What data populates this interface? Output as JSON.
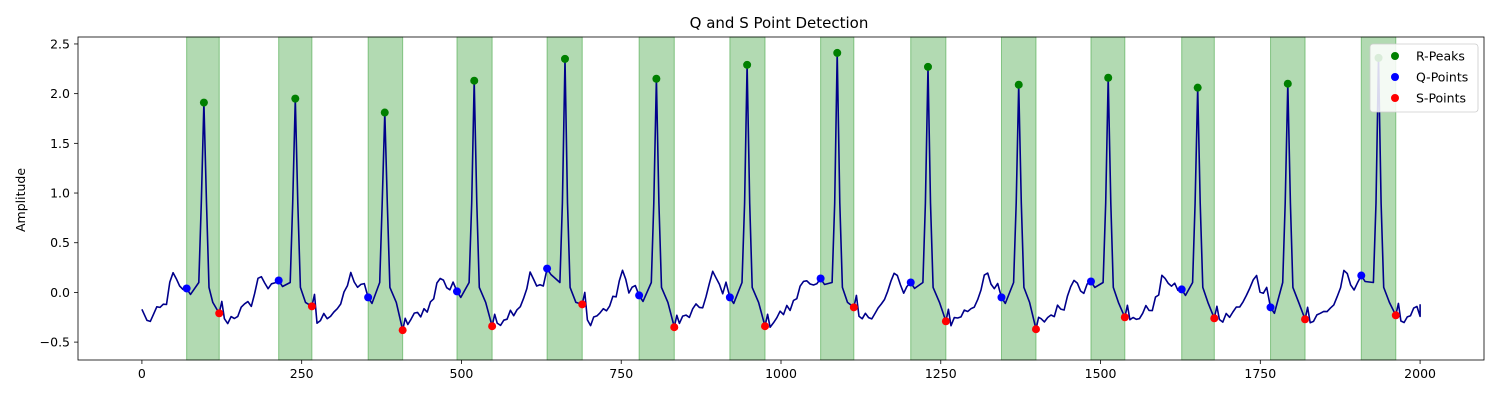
{
  "chart_data": {
    "type": "line",
    "title": "Q and S Point Detection",
    "xlabel": "",
    "ylabel": "Amplitude",
    "xlim": [
      -100,
      2100
    ],
    "ylim": [
      -0.68,
      2.57
    ],
    "xticks": [
      0,
      250,
      500,
      750,
      1000,
      1250,
      1500,
      1750,
      2000
    ],
    "yticks": [
      -0.5,
      0.0,
      0.5,
      1.0,
      1.5,
      2.0,
      2.5
    ],
    "ytick_labels": [
      "−0.5",
      "0.0",
      "0.5",
      "1.0",
      "1.5",
      "2.0",
      "2.5"
    ],
    "legend_position": "top-right",
    "legend": [
      "R-Peaks",
      "Q-Points",
      "S-Points"
    ],
    "colors": {
      "signal": "#00008b",
      "band": "#2e9b2e",
      "r_peaks": "#008000",
      "q_points": "#0000ff",
      "s_points": "#ff0000"
    },
    "series": [
      {
        "name": "R-Peaks",
        "marker": "circle",
        "points": [
          [
            97,
            1.91
          ],
          [
            240,
            1.95
          ],
          [
            380,
            1.81
          ],
          [
            520,
            2.13
          ],
          [
            662,
            2.35
          ],
          [
            805,
            2.15
          ],
          [
            947,
            2.29
          ],
          [
            1088,
            2.41
          ],
          [
            1230,
            2.27
          ],
          [
            1372,
            2.09
          ],
          [
            1512,
            2.16
          ],
          [
            1652,
            2.06
          ],
          [
            1793,
            2.1
          ],
          [
            1935,
            2.36
          ]
        ]
      },
      {
        "name": "Q-Points",
        "marker": "circle",
        "points": [
          [
            70,
            0.04
          ],
          [
            214,
            0.12
          ],
          [
            354,
            -0.05
          ],
          [
            493,
            0.01
          ],
          [
            634,
            0.24
          ],
          [
            778,
            -0.03
          ],
          [
            920,
            -0.05
          ],
          [
            1062,
            0.14
          ],
          [
            1203,
            0.1
          ],
          [
            1345,
            -0.05
          ],
          [
            1485,
            0.11
          ],
          [
            1627,
            0.03
          ],
          [
            1766,
            -0.15
          ],
          [
            1908,
            0.17
          ]
        ]
      },
      {
        "name": "S-Points",
        "marker": "circle",
        "points": [
          [
            121,
            -0.21
          ],
          [
            266,
            -0.14
          ],
          [
            408,
            -0.38
          ],
          [
            548,
            -0.34
          ],
          [
            689,
            -0.12
          ],
          [
            833,
            -0.35
          ],
          [
            975,
            -0.34
          ],
          [
            1114,
            -0.15
          ],
          [
            1258,
            -0.29
          ],
          [
            1399,
            -0.37
          ],
          [
            1538,
            -0.25
          ],
          [
            1678,
            -0.26
          ],
          [
            1820,
            -0.27
          ],
          [
            1962,
            -0.23
          ]
        ]
      }
    ],
    "shaded_regions": [
      [
        70,
        121
      ],
      [
        214,
        266
      ],
      [
        354,
        408
      ],
      [
        493,
        548
      ],
      [
        634,
        689
      ],
      [
        778,
        833
      ],
      [
        920,
        975
      ],
      [
        1062,
        1114
      ],
      [
        1203,
        1258
      ],
      [
        1345,
        1399
      ],
      [
        1485,
        1538
      ],
      [
        1627,
        1678
      ],
      [
        1766,
        1820
      ],
      [
        1908,
        1962
      ]
    ],
    "signal_range": [
      0,
      2000
    ]
  }
}
